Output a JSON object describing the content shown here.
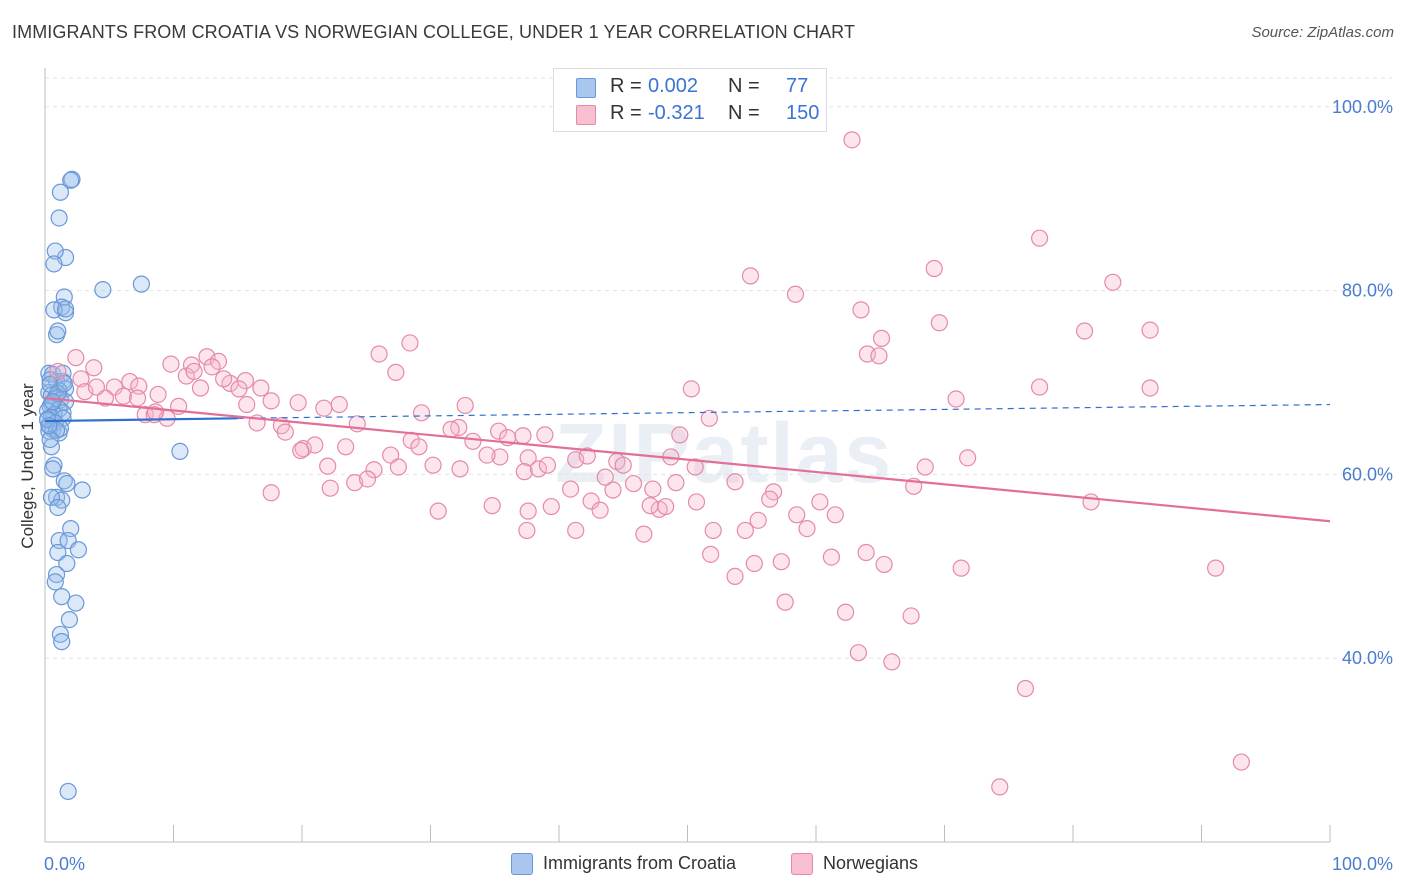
{
  "title": "IMMIGRANTS FROM CROATIA VS NORWEGIAN COLLEGE, UNDER 1 YEAR CORRELATION CHART",
  "source": "Source: ZipAtlas.com",
  "watermark": "ZIPatlas",
  "legend": {
    "rows": [
      {
        "r_label": "R =",
        "r_value": "0.002",
        "n_label": "N =",
        "n_value": "77",
        "color": "#a9c6ee",
        "border": "#6a98d8"
      },
      {
        "r_label": "R =",
        "r_value": "-0.321",
        "n_label": "N =",
        "n_value": "150",
        "color": "#f7bfd0",
        "border": "#e58aa8"
      }
    ]
  },
  "bottom_legend": [
    {
      "label": "Immigrants from Croatia",
      "color": "#a9c6ee",
      "border": "#6a98d8"
    },
    {
      "label": "Norwegians",
      "color": "#f7bfd0",
      "border": "#e58aa8"
    }
  ],
  "chart_data": {
    "type": "scatter",
    "ylabel": "College, Under 1 year",
    "xlim": [
      0,
      100
    ],
    "ylim": [
      20,
      104
    ],
    "x_tick_labels": [
      "0.0%",
      "100.0%"
    ],
    "y_ticks": [
      40,
      60,
      80,
      100
    ],
    "y_tick_labels": [
      "40.0%",
      "60.0%",
      "80.0%",
      "100.0%"
    ],
    "grid": true,
    "series": [
      {
        "name": "Immigrants from Croatia",
        "color": "#6a98d8",
        "fill": "rgba(150,188,236,0.35)",
        "trend": {
          "x": [
            0,
            15
          ],
          "y": [
            65.8,
            66.1
          ],
          "color": "#2f6fd0",
          "dashed_extension_to": [
            100,
            67.6
          ]
        },
        "points": [
          [
            2.1,
            92.1
          ],
          [
            2.0,
            92.0
          ],
          [
            1.2,
            90.7
          ],
          [
            1.1,
            87.9
          ],
          [
            1.6,
            83.6
          ],
          [
            0.8,
            84.3
          ],
          [
            0.7,
            82.9
          ],
          [
            4.5,
            80.1
          ],
          [
            7.5,
            80.7
          ],
          [
            1.5,
            79.3
          ],
          [
            1.3,
            78.2
          ],
          [
            1.6,
            77.6
          ],
          [
            0.7,
            77.9
          ],
          [
            1.6,
            78.0
          ],
          [
            0.9,
            75.2
          ],
          [
            1.0,
            75.6
          ],
          [
            0.3,
            71.0
          ],
          [
            0.6,
            70.9
          ],
          [
            1.4,
            71.0
          ],
          [
            0.9,
            70.1
          ],
          [
            0.4,
            70.3
          ],
          [
            1.4,
            70.1
          ],
          [
            1.6,
            69.3
          ],
          [
            1.1,
            69.1
          ],
          [
            0.3,
            68.9
          ],
          [
            0.5,
            68.6
          ],
          [
            0.8,
            68.3
          ],
          [
            1.2,
            68.1
          ],
          [
            1.6,
            67.9
          ],
          [
            0.5,
            67.7
          ],
          [
            0.4,
            67.4
          ],
          [
            1.1,
            67.1
          ],
          [
            0.2,
            66.9
          ],
          [
            1.4,
            66.7
          ],
          [
            0.7,
            66.5
          ],
          [
            0.5,
            66.2
          ],
          [
            1.4,
            66.1
          ],
          [
            0.2,
            65.9
          ],
          [
            0.8,
            65.6
          ],
          [
            0.4,
            65.2
          ],
          [
            0.6,
            64.9
          ],
          [
            0.3,
            64.7
          ],
          [
            1.1,
            64.5
          ],
          [
            0.5,
            63.0
          ],
          [
            10.5,
            62.5
          ],
          [
            0.7,
            61.0
          ],
          [
            0.6,
            60.6
          ],
          [
            1.5,
            59.3
          ],
          [
            1.7,
            59.0
          ],
          [
            2.9,
            58.3
          ],
          [
            0.9,
            57.5
          ],
          [
            1.3,
            57.2
          ],
          [
            0.5,
            57.5
          ],
          [
            1.0,
            56.4
          ],
          [
            2.0,
            54.1
          ],
          [
            1.1,
            52.8
          ],
          [
            1.8,
            52.8
          ],
          [
            2.6,
            51.8
          ],
          [
            1.0,
            51.5
          ],
          [
            1.7,
            50.3
          ],
          [
            0.9,
            49.1
          ],
          [
            0.8,
            48.3
          ],
          [
            1.3,
            46.7
          ],
          [
            2.4,
            46.0
          ],
          [
            1.9,
            44.2
          ],
          [
            1.2,
            42.6
          ],
          [
            1.3,
            41.8
          ],
          [
            1.8,
            25.5
          ],
          [
            0.4,
            69.8
          ],
          [
            1.0,
            68.8
          ],
          [
            0.6,
            67.9
          ],
          [
            0.2,
            66.0
          ],
          [
            1.2,
            65.0
          ],
          [
            0.9,
            64.8
          ],
          [
            0.4,
            63.8
          ],
          [
            1.5,
            69.9
          ],
          [
            0.3,
            65.3
          ]
        ]
      },
      {
        "name": "Norwegians",
        "color": "#e58aa8",
        "fill": "rgba(246,180,202,0.35)",
        "trend": {
          "x": [
            0,
            100
          ],
          "y": [
            68.3,
            54.9
          ],
          "color": "#e46f96"
        },
        "points": [
          [
            62.8,
            96.4
          ],
          [
            77.4,
            85.7
          ],
          [
            69.2,
            82.4
          ],
          [
            54.9,
            81.6
          ],
          [
            83.1,
            80.9
          ],
          [
            58.4,
            79.6
          ],
          [
            63.5,
            77.9
          ],
          [
            69.6,
            76.5
          ],
          [
            80.9,
            75.6
          ],
          [
            86.0,
            75.7
          ],
          [
            65.1,
            74.8
          ],
          [
            28.4,
            74.3
          ],
          [
            26.0,
            73.1
          ],
          [
            64.0,
            73.1
          ],
          [
            64.9,
            72.9
          ],
          [
            2.4,
            72.7
          ],
          [
            12.6,
            72.8
          ],
          [
            13.5,
            72.3
          ],
          [
            11.4,
            71.9
          ],
          [
            13.0,
            71.7
          ],
          [
            3.8,
            71.6
          ],
          [
            1.0,
            71.2
          ],
          [
            27.3,
            71.1
          ],
          [
            11.0,
            70.7
          ],
          [
            2.8,
            70.4
          ],
          [
            15.6,
            70.2
          ],
          [
            6.6,
            70.1
          ],
          [
            14.4,
            69.9
          ],
          [
            7.3,
            69.6
          ],
          [
            12.1,
            69.4
          ],
          [
            5.4,
            69.5
          ],
          [
            15.1,
            69.3
          ],
          [
            50.3,
            69.3
          ],
          [
            77.4,
            69.5
          ],
          [
            86.0,
            69.4
          ],
          [
            3.1,
            69.0
          ],
          [
            6.1,
            68.5
          ],
          [
            4.7,
            68.3
          ],
          [
            7.2,
            68.3
          ],
          [
            8.8,
            68.7
          ],
          [
            17.6,
            68.0
          ],
          [
            70.9,
            68.2
          ],
          [
            15.7,
            67.6
          ],
          [
            19.7,
            67.8
          ],
          [
            10.4,
            67.4
          ],
          [
            21.7,
            67.2
          ],
          [
            22.9,
            67.6
          ],
          [
            32.7,
            67.5
          ],
          [
            29.3,
            66.7
          ],
          [
            7.8,
            66.5
          ],
          [
            8.5,
            66.5
          ],
          [
            9.5,
            66.1
          ],
          [
            51.7,
            66.1
          ],
          [
            16.5,
            65.6
          ],
          [
            24.3,
            65.5
          ],
          [
            18.4,
            65.3
          ],
          [
            32.2,
            65.1
          ],
          [
            31.6,
            64.9
          ],
          [
            28.5,
            63.7
          ],
          [
            35.3,
            64.7
          ],
          [
            36.0,
            64.0
          ],
          [
            37.2,
            64.2
          ],
          [
            38.9,
            64.3
          ],
          [
            18.7,
            64.6
          ],
          [
            20.1,
            62.8
          ],
          [
            21.0,
            63.2
          ],
          [
            33.3,
            63.6
          ],
          [
            22.0,
            60.9
          ],
          [
            25.6,
            60.5
          ],
          [
            26.9,
            62.1
          ],
          [
            29.1,
            63.0
          ],
          [
            30.2,
            61.0
          ],
          [
            32.3,
            60.6
          ],
          [
            35.4,
            61.9
          ],
          [
            37.6,
            61.8
          ],
          [
            37.3,
            60.3
          ],
          [
            38.4,
            60.6
          ],
          [
            39.1,
            61.0
          ],
          [
            41.3,
            61.6
          ],
          [
            42.2,
            62.0
          ],
          [
            44.5,
            61.4
          ],
          [
            48.7,
            61.9
          ],
          [
            50.6,
            60.8
          ],
          [
            53.7,
            59.2
          ],
          [
            23.4,
            63.0
          ],
          [
            24.1,
            59.1
          ],
          [
            25.1,
            59.5
          ],
          [
            22.2,
            58.5
          ],
          [
            17.6,
            58.0
          ],
          [
            34.8,
            56.6
          ],
          [
            44.2,
            58.3
          ],
          [
            47.3,
            58.4
          ],
          [
            49.1,
            59.1
          ],
          [
            56.7,
            58.1
          ],
          [
            56.4,
            57.3
          ],
          [
            47.8,
            56.2
          ],
          [
            42.5,
            57.1
          ],
          [
            43.2,
            56.1
          ],
          [
            37.6,
            56.0
          ],
          [
            47.1,
            56.6
          ],
          [
            55.5,
            55.0
          ],
          [
            58.5,
            55.6
          ],
          [
            61.5,
            55.6
          ],
          [
            52.0,
            53.9
          ],
          [
            54.5,
            53.9
          ],
          [
            59.3,
            54.1
          ],
          [
            63.9,
            51.5
          ],
          [
            51.8,
            51.3
          ],
          [
            55.2,
            50.3
          ],
          [
            57.3,
            50.5
          ],
          [
            61.2,
            51.0
          ],
          [
            65.3,
            50.2
          ],
          [
            53.7,
            48.9
          ],
          [
            71.3,
            49.8
          ],
          [
            91.1,
            49.8
          ],
          [
            57.6,
            46.1
          ],
          [
            62.3,
            45.0
          ],
          [
            67.4,
            44.6
          ],
          [
            63.3,
            40.6
          ],
          [
            65.9,
            39.6
          ],
          [
            76.3,
            36.7
          ],
          [
            74.3,
            26.0
          ],
          [
            93.1,
            28.7
          ],
          [
            37.5,
            53.9
          ],
          [
            41.3,
            53.9
          ],
          [
            39.4,
            56.5
          ],
          [
            46.6,
            53.5
          ],
          [
            48.3,
            56.5
          ],
          [
            50.7,
            57.0
          ],
          [
            60.3,
            57.0
          ],
          [
            71.8,
            61.8
          ],
          [
            68.5,
            60.8
          ],
          [
            67.6,
            58.7
          ],
          [
            81.4,
            57.0
          ],
          [
            40.9,
            58.4
          ],
          [
            45.0,
            61.0
          ],
          [
            43.6,
            59.7
          ],
          [
            45.8,
            59.0
          ],
          [
            34.4,
            62.1
          ],
          [
            30.6,
            56.0
          ],
          [
            9.8,
            72.0
          ],
          [
            16.8,
            69.4
          ],
          [
            13.9,
            70.4
          ],
          [
            11.6,
            71.2
          ],
          [
            4.0,
            69.5
          ],
          [
            8.6,
            66.8
          ],
          [
            49.4,
            64.3
          ],
          [
            19.9,
            62.6
          ],
          [
            27.5,
            60.8
          ]
        ]
      }
    ]
  }
}
